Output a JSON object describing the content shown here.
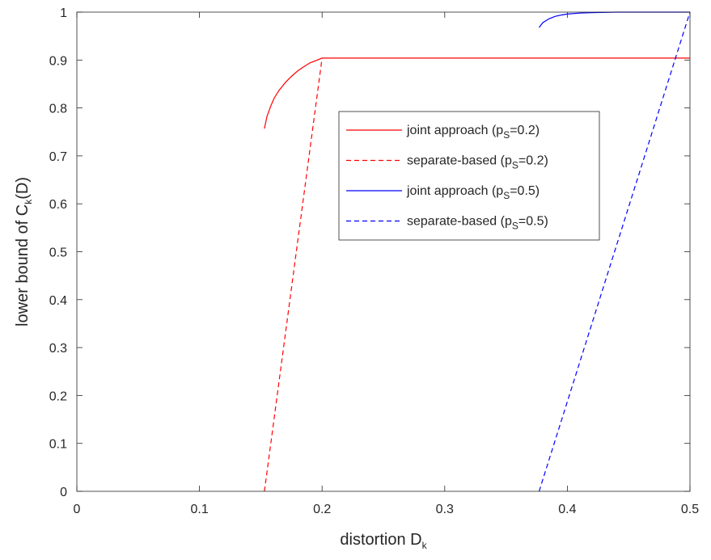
{
  "chart_data": {
    "type": "line",
    "xlabel": "distortion D",
    "xlabel_sub": "k",
    "ylabel_parts": [
      "lower bound of C",
      "k",
      "(D)"
    ],
    "xlim": [
      0,
      0.5
    ],
    "ylim": [
      0,
      1
    ],
    "xticks": [
      0,
      0.1,
      0.2,
      0.3,
      0.4,
      0.5
    ],
    "xtick_labels": [
      "0",
      "0.1",
      "0.2",
      "0.3",
      "0.4",
      "0.5"
    ],
    "yticks": [
      0,
      0.1,
      0.2,
      0.3,
      0.4,
      0.5,
      0.6,
      0.7,
      0.8,
      0.9,
      1
    ],
    "ytick_labels": [
      "0",
      "0.1",
      "0.2",
      "0.3",
      "0.4",
      "0.5",
      "0.6",
      "0.7",
      "0.8",
      "0.9",
      "1"
    ],
    "grid": false,
    "legend_position": "center-right",
    "series": [
      {
        "name_parts": [
          "joint approach (p",
          "S",
          "=0.2)"
        ],
        "color": "#ff0000",
        "dash": "solid",
        "x": [
          0.153,
          0.155,
          0.158,
          0.161,
          0.165,
          0.17,
          0.175,
          0.18,
          0.185,
          0.19,
          0.195,
          0.2,
          0.3,
          0.4,
          0.5
        ],
        "y": [
          0.757,
          0.782,
          0.803,
          0.821,
          0.837,
          0.853,
          0.866,
          0.877,
          0.886,
          0.894,
          0.899,
          0.904,
          0.904,
          0.904,
          0.904
        ]
      },
      {
        "name_parts": [
          "separate-based (p",
          "S",
          "=0.2)"
        ],
        "color": "#ff0000",
        "dash": "dashed",
        "x": [
          0.153,
          0.2
        ],
        "y": [
          0,
          0.904
        ]
      },
      {
        "name_parts": [
          "joint approach (p",
          "S",
          "=0.5)"
        ],
        "color": "#0000ff",
        "dash": "solid",
        "x": [
          0.377,
          0.38,
          0.385,
          0.39,
          0.395,
          0.4,
          0.41,
          0.42,
          0.44,
          0.47,
          0.5
        ],
        "y": [
          0.968,
          0.978,
          0.986,
          0.991,
          0.994,
          0.996,
          0.998,
          0.999,
          1,
          1,
          1
        ]
      },
      {
        "name_parts": [
          "separate-based (p",
          "S",
          "=0.5)"
        ],
        "color": "#0000ff",
        "dash": "dashed",
        "x": [
          0.377,
          0.5
        ],
        "y": [
          0,
          1
        ]
      }
    ]
  }
}
